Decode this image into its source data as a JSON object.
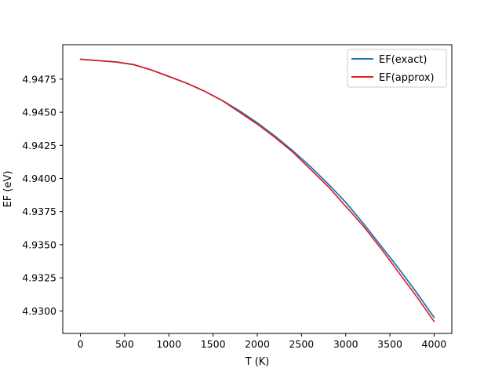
{
  "chart_data": {
    "type": "line",
    "title": "",
    "xlabel": "T (K)",
    "ylabel": "EF (eV)",
    "xlim": [
      -200,
      4200
    ],
    "ylim": [
      4.9283,
      4.9501
    ],
    "xticks": [
      0,
      500,
      1000,
      1500,
      2000,
      2500,
      3000,
      3500,
      4000
    ],
    "xtick_labels": [
      "0",
      "500",
      "1000",
      "1500",
      "2000",
      "2500",
      "3000",
      "3500",
      "4000"
    ],
    "yticks": [
      4.93,
      4.9325,
      4.935,
      4.9375,
      4.94,
      4.9425,
      4.945,
      4.9475
    ],
    "ytick_labels": [
      "4.9300",
      "4.9325",
      "4.9350",
      "4.9375",
      "4.9400",
      "4.9425",
      "4.9450",
      "4.9475"
    ],
    "grid": false,
    "legend_position": "top-right",
    "series": [
      {
        "name": "EF(exact)",
        "color": "#1f77b4",
        "x": [
          0,
          200,
          400,
          600,
          800,
          1000,
          1200,
          1400,
          1600,
          1800,
          2000,
          2200,
          2400,
          2600,
          2800,
          3000,
          3200,
          3400,
          3600,
          3800,
          4000
        ],
        "y": [
          4.949,
          4.9489,
          4.9488,
          4.9486,
          4.9482,
          4.9477,
          4.9472,
          4.9466,
          4.9459,
          4.9451,
          4.9442,
          4.9432,
          4.9421,
          4.9409,
          4.9396,
          4.9382,
          4.9366,
          4.9349,
          4.9332,
          4.9314,
          4.9295
        ]
      },
      {
        "name": "EF(approx)",
        "color": "#e41a1c",
        "x": [
          0,
          200,
          400,
          600,
          800,
          1000,
          1200,
          1400,
          1600,
          1800,
          2000,
          2200,
          2400,
          2600,
          2800,
          3000,
          3200,
          3400,
          3600,
          3800,
          4000
        ],
        "y": [
          4.949,
          4.9489,
          4.9488,
          4.9486,
          4.9482,
          4.9477,
          4.9472,
          4.9466,
          4.9459,
          4.945,
          4.9441,
          4.9431,
          4.942,
          4.9407,
          4.9394,
          4.9379,
          4.9364,
          4.9347,
          4.9329,
          4.9311,
          4.9292
        ]
      }
    ]
  }
}
